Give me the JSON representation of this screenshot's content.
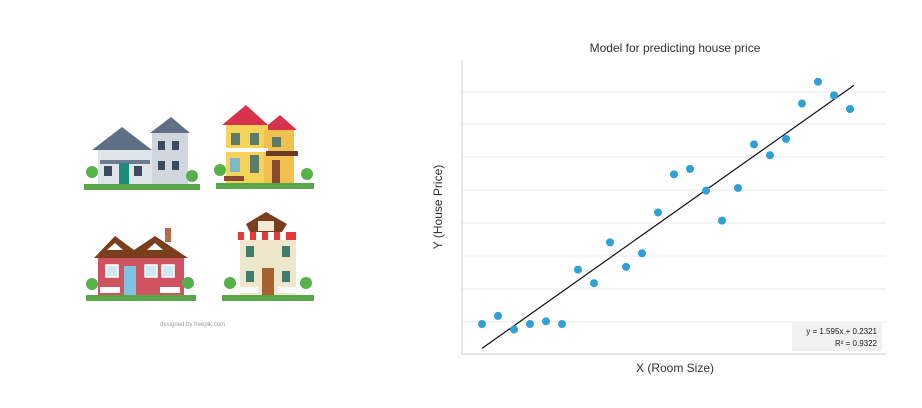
{
  "illustration": {
    "credit": "designed by freepik.com",
    "houses": [
      "house-blue-gray",
      "house-yellow-red-roof",
      "house-red-brown-roof",
      "house-cream-striped-awning"
    ]
  },
  "chart_data": {
    "type": "scatter",
    "title": "Model for predicting house price",
    "xlabel": "X (Room Size)",
    "ylabel": "Y (House Price)",
    "grid": true,
    "x_ticks_shown": false,
    "y_ticks_shown": false,
    "series": [
      {
        "points": [
          [
            0.02,
            0.07
          ],
          [
            0.06,
            0.1
          ],
          [
            0.1,
            0.05
          ],
          [
            0.14,
            0.07
          ],
          [
            0.18,
            0.08
          ],
          [
            0.22,
            0.07
          ],
          [
            0.26,
            0.27
          ],
          [
            0.3,
            0.22
          ],
          [
            0.34,
            0.37
          ],
          [
            0.38,
            0.28
          ],
          [
            0.42,
            0.33
          ],
          [
            0.46,
            0.48
          ],
          [
            0.5,
            0.62
          ],
          [
            0.54,
            0.64
          ],
          [
            0.58,
            0.56
          ],
          [
            0.62,
            0.45
          ],
          [
            0.66,
            0.57
          ],
          [
            0.7,
            0.73
          ],
          [
            0.74,
            0.69
          ],
          [
            0.78,
            0.75
          ],
          [
            0.82,
            0.88
          ],
          [
            0.86,
            0.96
          ],
          [
            0.9,
            0.91
          ],
          [
            0.94,
            0.86
          ]
        ],
        "color": "#2f9fd8"
      }
    ],
    "trendline": {
      "slope": 1.595,
      "intercept": 0.2321,
      "r2": 0.9322,
      "color": "#111111"
    },
    "equation_lines": [
      "y = 1.595x + 0.2321",
      "R² = 0.9322"
    ],
    "grid_color": "#e8e8e8",
    "axis_color": "#cccccc"
  }
}
